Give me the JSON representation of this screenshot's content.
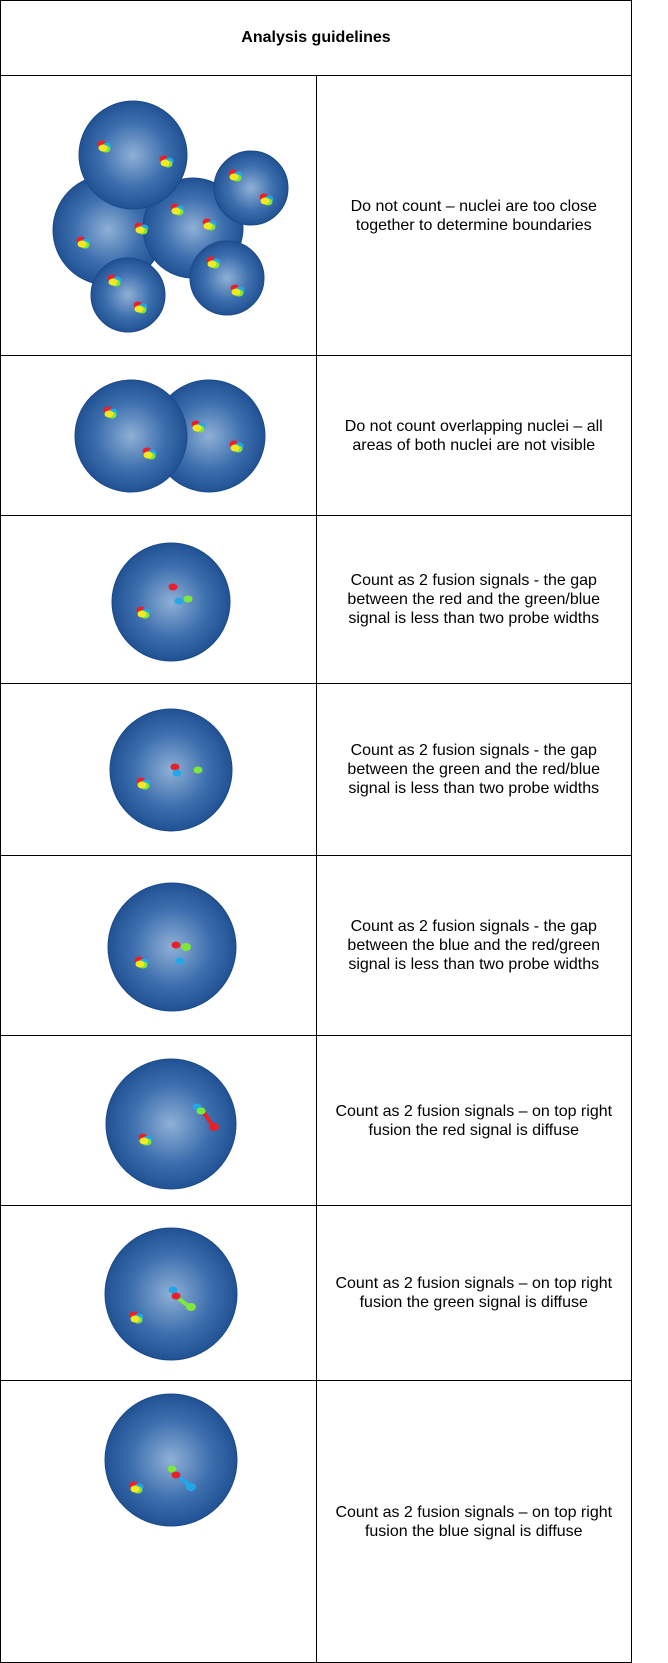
{
  "table": {
    "header": "Analysis guidelines",
    "rows": [
      "Do not count – nuclei are too close together to determine boundaries",
      "Do not count overlapping nuclei – all areas of both nuclei are not visible",
      "Count as 2 fusion signals - the gap between the red and the green/blue signal is less than two probe widths",
      "Count as 2 fusion signals - the gap between the green and the red/blue signal is less than two probe widths",
      "Count as 2 fusion signals - the gap between the blue and the red/green signal is less than two probe widths",
      "Count as 2 fusion signals – on top right fusion the red signal is diffuse",
      "Count as 2 fusion signals – on top right fusion the green signal is diffuse",
      "Count as 2 fusion signals – on top right fusion the blue signal is diffuse"
    ]
  }
}
